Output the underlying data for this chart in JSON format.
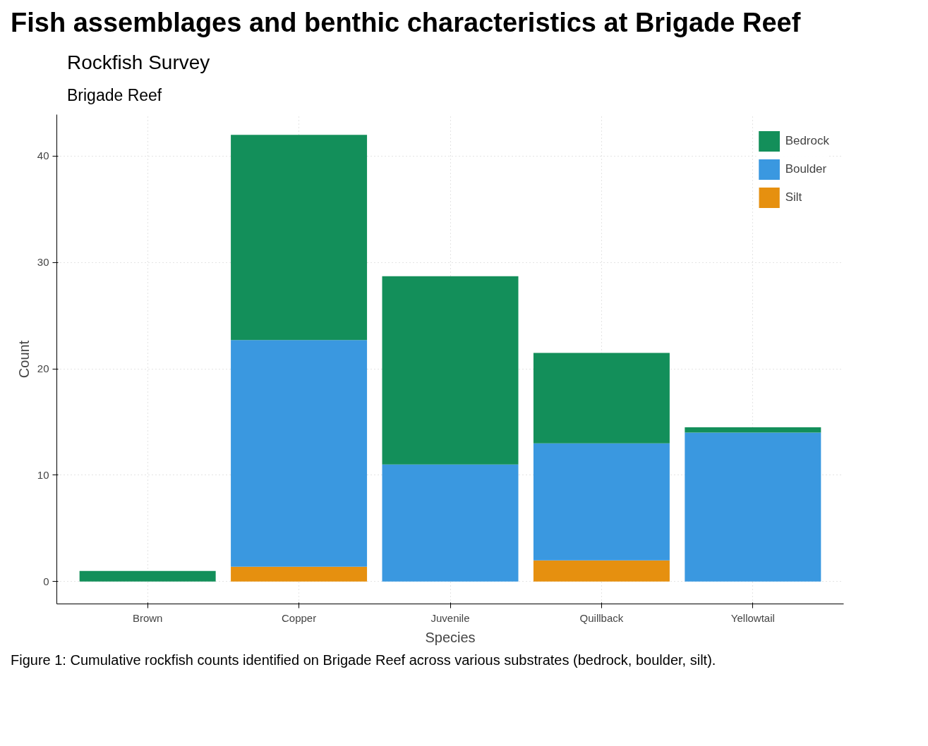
{
  "chart_data": {
    "type": "bar",
    "stacked": true,
    "title": "Fish assemblages and benthic characteristics at Brigade Reef",
    "subtitle": "Rockfish Survey",
    "xlabel": "Species",
    "ylabel": "Count",
    "categories": [
      "Brown",
      "Copper",
      "Juvenile",
      "Quillback",
      "Yellowtail"
    ],
    "series": [
      {
        "name": "Silt",
        "color": "#e6900f",
        "values": [
          0,
          1.4,
          0,
          2,
          0
        ]
      },
      {
        "name": "Boulder",
        "color": "#3a98e0",
        "values": [
          0,
          21.3,
          11,
          11,
          14
        ]
      },
      {
        "name": "Bedrock",
        "color": "#138f5a",
        "values": [
          1,
          19.3,
          17.7,
          8.5,
          0.5
        ]
      }
    ],
    "ylim": [
      -2.1,
      43.9
    ],
    "yticks": [
      0,
      10,
      20,
      30,
      40
    ],
    "grid": true,
    "legend": "top right",
    "annotations": [
      "Brigade Reef",
      "Figure 1: Cumulative rockfish counts identified on Brigade Reef across various substrates (bedrock, boulder, silt)."
    ]
  }
}
